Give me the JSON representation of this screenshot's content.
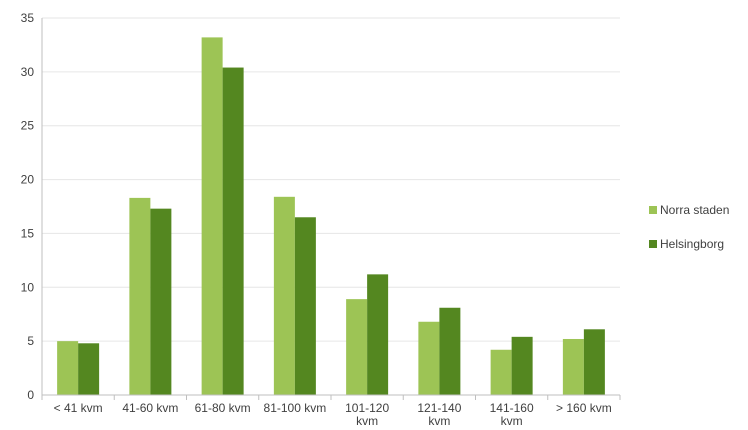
{
  "chart_data": {
    "type": "bar",
    "categories": [
      "< 41 kvm",
      "41-60 kvm",
      "61-80 kvm",
      "81-100 kvm",
      "101-120 kvm",
      "121-140 kvm",
      "141-160 kvm",
      "> 160 kvm"
    ],
    "series": [
      {
        "name": "Norra staden",
        "color": "#9dc455",
        "values": [
          5.0,
          18.3,
          33.2,
          18.4,
          8.9,
          6.8,
          4.2,
          5.2
        ]
      },
      {
        "name": "Helsingborg",
        "color": "#548720",
        "values": [
          4.8,
          17.3,
          30.4,
          16.5,
          11.2,
          8.1,
          5.4,
          6.1
        ]
      }
    ],
    "ylim": [
      0,
      35
    ],
    "yticks": [
      "0",
      "5",
      "10",
      "15",
      "20",
      "25",
      "30",
      "35"
    ],
    "grid": true,
    "legend_position": "right",
    "title": "",
    "xlabel": "",
    "ylabel": ""
  }
}
